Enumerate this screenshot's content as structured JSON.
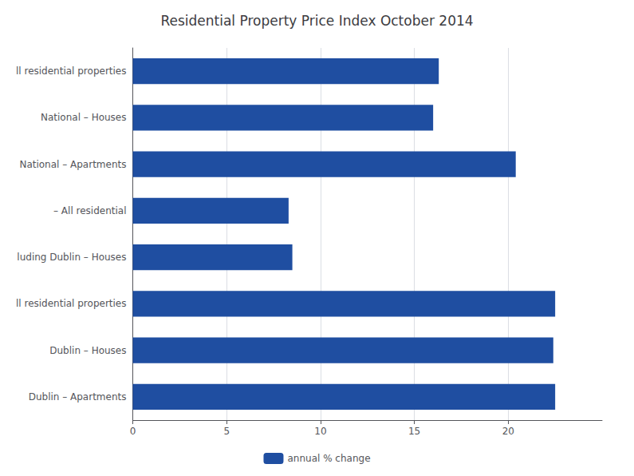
{
  "chart_data": {
    "type": "bar",
    "orientation": "horizontal",
    "title": "Residential Property Price Index October 2014",
    "categories": [
      "ll residential properties",
      "National – Houses",
      "National – Apartments",
      "– All residential",
      "luding Dublin – Houses",
      "ll residential properties",
      "Dublin – Houses",
      "Dublin – Apartments"
    ],
    "series": [
      {
        "name": "annual % change",
        "color": "#1f4ea1",
        "values": [
          16.3,
          16.0,
          20.4,
          8.3,
          8.5,
          22.5,
          22.4,
          22.5
        ]
      }
    ],
    "xlim": [
      0,
      25
    ],
    "xticks": [
      0,
      5,
      10,
      15,
      20
    ],
    "grid": true,
    "legend": "bottom"
  }
}
